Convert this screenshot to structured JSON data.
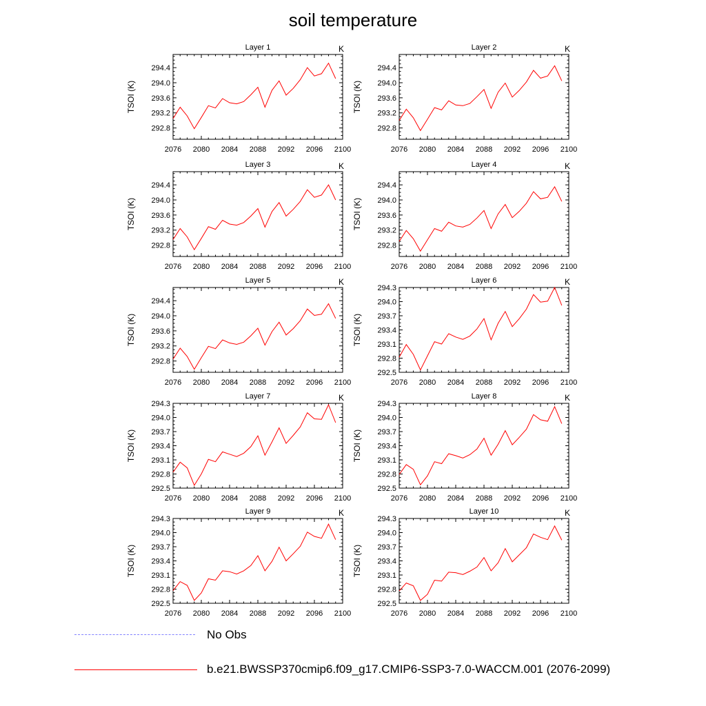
{
  "title": "soil temperature",
  "colors": {
    "model": "#ff0000",
    "obs": "#8080ff"
  },
  "legend": [
    {
      "name": "obs",
      "label": "No Obs",
      "style": "dashed"
    },
    {
      "name": "model",
      "label": "b.e21.BWSSP370cmip6.f09_g17.CMIP6-SSP3-7.0-WACCM.001 (2076-2099)",
      "style": "solid"
    }
  ],
  "chart_data": [
    {
      "type": "line",
      "title": "Layer 1",
      "units": "K",
      "ylabel": "TSOI  (K)",
      "xlim": [
        2076,
        2100
      ],
      "ylim": [
        292.5,
        294.75
      ],
      "xticks": [
        2076,
        2080,
        2084,
        2088,
        2092,
        2096,
        2100
      ],
      "yticks": [
        "292.8",
        "293.2",
        "293.6",
        "294.0",
        "294.4"
      ],
      "series": [
        {
          "name": "model",
          "x": [
            2076,
            2077,
            2078,
            2079,
            2080,
            2081,
            2082,
            2083,
            2084,
            2085,
            2086,
            2087,
            2088,
            2089,
            2090,
            2091,
            2092,
            2093,
            2094,
            2095,
            2096,
            2097,
            2098,
            2099
          ],
          "values": [
            293.05,
            293.35,
            293.12,
            292.78,
            293.08,
            293.39,
            293.33,
            293.58,
            293.47,
            293.44,
            293.5,
            293.68,
            293.88,
            293.35,
            293.8,
            294.05,
            293.67,
            293.85,
            294.08,
            294.4,
            294.18,
            294.24,
            294.52,
            294.11
          ]
        }
      ]
    },
    {
      "type": "line",
      "title": "Layer 2",
      "units": "K",
      "ylabel": "TSOI  (K)",
      "xlim": [
        2076,
        2100
      ],
      "ylim": [
        292.5,
        294.75
      ],
      "xticks": [
        2076,
        2080,
        2084,
        2088,
        2092,
        2096,
        2100
      ],
      "yticks": [
        "292.8",
        "293.2",
        "293.6",
        "294.0",
        "294.4"
      ],
      "series": [
        {
          "name": "model",
          "x": [
            2076,
            2077,
            2078,
            2079,
            2080,
            2081,
            2082,
            2083,
            2084,
            2085,
            2086,
            2087,
            2088,
            2089,
            2090,
            2091,
            2092,
            2093,
            2094,
            2095,
            2096,
            2097,
            2098,
            2099
          ],
          "values": [
            293.0,
            293.3,
            293.07,
            292.73,
            293.03,
            293.34,
            293.28,
            293.52,
            293.41,
            293.39,
            293.45,
            293.63,
            293.82,
            293.32,
            293.75,
            293.99,
            293.62,
            293.8,
            294.02,
            294.33,
            294.12,
            294.18,
            294.45,
            294.05
          ]
        }
      ]
    },
    {
      "type": "line",
      "title": "Layer 3",
      "units": "K",
      "ylabel": "TSOI  (K)",
      "xlim": [
        2076,
        2100
      ],
      "ylim": [
        292.5,
        294.75
      ],
      "xticks": [
        2076,
        2080,
        2084,
        2088,
        2092,
        2096,
        2100
      ],
      "yticks": [
        "292.8",
        "293.2",
        "293.6",
        "294.0",
        "294.4"
      ],
      "series": [
        {
          "name": "model",
          "x": [
            2076,
            2077,
            2078,
            2079,
            2080,
            2081,
            2082,
            2083,
            2084,
            2085,
            2086,
            2087,
            2088,
            2089,
            2090,
            2091,
            2092,
            2093,
            2094,
            2095,
            2096,
            2097,
            2098,
            2099
          ],
          "values": [
            292.95,
            293.24,
            293.02,
            292.68,
            292.98,
            293.29,
            293.22,
            293.46,
            293.36,
            293.33,
            293.4,
            293.57,
            293.77,
            293.28,
            293.69,
            293.93,
            293.57,
            293.75,
            293.96,
            294.27,
            294.07,
            294.13,
            294.4,
            294.0
          ]
        }
      ]
    },
    {
      "type": "line",
      "title": "Layer 4",
      "units": "K",
      "ylabel": "TSOI  (K)",
      "xlim": [
        2076,
        2100
      ],
      "ylim": [
        292.5,
        294.75
      ],
      "xticks": [
        2076,
        2080,
        2084,
        2088,
        2092,
        2096,
        2100
      ],
      "yticks": [
        "292.8",
        "293.2",
        "293.6",
        "294.0",
        "294.4"
      ],
      "series": [
        {
          "name": "model",
          "x": [
            2076,
            2077,
            2078,
            2079,
            2080,
            2081,
            2082,
            2083,
            2084,
            2085,
            2086,
            2087,
            2088,
            2089,
            2090,
            2091,
            2092,
            2093,
            2094,
            2095,
            2096,
            2097,
            2098,
            2099
          ],
          "values": [
            292.9,
            293.19,
            292.97,
            292.64,
            292.94,
            293.24,
            293.17,
            293.41,
            293.31,
            293.28,
            293.35,
            293.52,
            293.72,
            293.24,
            293.63,
            293.88,
            293.53,
            293.7,
            293.91,
            294.22,
            294.03,
            294.07,
            294.35,
            293.96
          ]
        }
      ]
    },
    {
      "type": "line",
      "title": "Layer 5",
      "units": "K",
      "ylabel": "TSOI  (K)",
      "xlim": [
        2076,
        2100
      ],
      "ylim": [
        292.5,
        294.75
      ],
      "xticks": [
        2076,
        2080,
        2084,
        2088,
        2092,
        2096,
        2100
      ],
      "yticks": [
        "292.8",
        "293.2",
        "293.6",
        "294.0",
        "294.4"
      ],
      "series": [
        {
          "name": "model",
          "x": [
            2076,
            2077,
            2078,
            2079,
            2080,
            2081,
            2082,
            2083,
            2084,
            2085,
            2086,
            2087,
            2088,
            2089,
            2090,
            2091,
            2092,
            2093,
            2094,
            2095,
            2096,
            2097,
            2098,
            2099
          ],
          "values": [
            292.85,
            293.14,
            292.92,
            292.58,
            292.89,
            293.19,
            293.13,
            293.36,
            293.28,
            293.24,
            293.3,
            293.47,
            293.67,
            293.22,
            293.58,
            293.83,
            293.49,
            293.66,
            293.87,
            294.18,
            294.01,
            294.04,
            294.32,
            293.93
          ]
        }
      ]
    },
    {
      "type": "line",
      "title": "Layer 6",
      "units": "K",
      "ylabel": "TSOI  (K)",
      "xlim": [
        2076,
        2100
      ],
      "ylim": [
        292.5,
        294.3
      ],
      "xticks": [
        2076,
        2080,
        2084,
        2088,
        2092,
        2096,
        2100
      ],
      "yticks": [
        "292.5",
        "292.8",
        "293.1",
        "293.4",
        "293.7",
        "294.0",
        "294.3"
      ],
      "series": [
        {
          "name": "model",
          "x": [
            2076,
            2077,
            2078,
            2079,
            2080,
            2081,
            2082,
            2083,
            2084,
            2085,
            2086,
            2087,
            2088,
            2089,
            2090,
            2091,
            2092,
            2093,
            2094,
            2095,
            2096,
            2097,
            2098,
            2099
          ],
          "values": [
            292.82,
            293.09,
            292.88,
            292.55,
            292.85,
            293.15,
            293.1,
            293.32,
            293.25,
            293.2,
            293.27,
            293.42,
            293.64,
            293.19,
            293.54,
            293.79,
            293.47,
            293.64,
            293.84,
            294.15,
            293.99,
            294.01,
            294.3,
            293.92
          ]
        }
      ]
    },
    {
      "type": "line",
      "title": "Layer 7",
      "units": "K",
      "ylabel": "TSOI  (K)",
      "xlim": [
        2076,
        2100
      ],
      "ylim": [
        292.5,
        294.3
      ],
      "xticks": [
        2076,
        2080,
        2084,
        2088,
        2092,
        2096,
        2100
      ],
      "yticks": [
        "292.5",
        "292.8",
        "293.1",
        "293.4",
        "293.7",
        "294.0",
        "294.3"
      ],
      "series": [
        {
          "name": "model",
          "x": [
            2076,
            2077,
            2078,
            2079,
            2080,
            2081,
            2082,
            2083,
            2084,
            2085,
            2086,
            2087,
            2088,
            2089,
            2090,
            2091,
            2092,
            2093,
            2094,
            2095,
            2096,
            2097,
            2098,
            2099
          ],
          "values": [
            292.84,
            293.05,
            292.93,
            292.56,
            292.8,
            293.11,
            293.06,
            293.27,
            293.22,
            293.17,
            293.24,
            293.38,
            293.61,
            293.2,
            293.48,
            293.78,
            293.45,
            293.62,
            293.8,
            294.1,
            293.97,
            293.96,
            294.27,
            293.89
          ]
        }
      ]
    },
    {
      "type": "line",
      "title": "Layer 8",
      "units": "K",
      "ylabel": "TSOI  (K)",
      "xlim": [
        2076,
        2100
      ],
      "ylim": [
        292.5,
        294.3
      ],
      "xticks": [
        2076,
        2080,
        2084,
        2088,
        2092,
        2096,
        2100
      ],
      "yticks": [
        "292.5",
        "292.8",
        "293.1",
        "293.4",
        "293.7",
        "294.0",
        "294.3"
      ],
      "series": [
        {
          "name": "model",
          "x": [
            2076,
            2077,
            2078,
            2079,
            2080,
            2081,
            2082,
            2083,
            2084,
            2085,
            2086,
            2087,
            2088,
            2089,
            2090,
            2091,
            2092,
            2093,
            2094,
            2095,
            2096,
            2097,
            2098,
            2099
          ],
          "values": [
            292.79,
            293.0,
            292.9,
            292.57,
            292.76,
            293.06,
            293.02,
            293.23,
            293.19,
            293.14,
            293.21,
            293.33,
            293.56,
            293.2,
            293.43,
            293.72,
            293.42,
            293.58,
            293.75,
            294.06,
            293.95,
            293.92,
            294.23,
            293.87
          ]
        }
      ]
    },
    {
      "type": "line",
      "title": "Layer 9",
      "units": "K",
      "ylabel": "TSOI  (K)",
      "xlim": [
        2076,
        2100
      ],
      "ylim": [
        292.5,
        294.3
      ],
      "xticks": [
        2076,
        2080,
        2084,
        2088,
        2092,
        2096,
        2100
      ],
      "yticks": [
        "292.5",
        "292.8",
        "293.1",
        "293.4",
        "293.7",
        "294.0",
        "294.3"
      ],
      "series": [
        {
          "name": "model",
          "x": [
            2076,
            2077,
            2078,
            2079,
            2080,
            2081,
            2082,
            2083,
            2084,
            2085,
            2086,
            2087,
            2088,
            2089,
            2090,
            2091,
            2092,
            2093,
            2094,
            2095,
            2096,
            2097,
            2098,
            2099
          ],
          "values": [
            292.77,
            292.96,
            292.88,
            292.56,
            292.72,
            293.02,
            292.99,
            293.19,
            293.17,
            293.12,
            293.19,
            293.3,
            293.51,
            293.19,
            293.39,
            293.69,
            293.4,
            293.55,
            293.71,
            294.01,
            293.92,
            293.88,
            294.18,
            293.85
          ]
        }
      ]
    },
    {
      "type": "line",
      "title": "Layer 10",
      "units": "K",
      "ylabel": "TSOI  (K)",
      "xlim": [
        2076,
        2100
      ],
      "ylim": [
        292.5,
        294.3
      ],
      "xticks": [
        2076,
        2080,
        2084,
        2088,
        2092,
        2096,
        2100
      ],
      "yticks": [
        "292.5",
        "292.8",
        "293.1",
        "293.4",
        "293.7",
        "294.0",
        "294.3"
      ],
      "series": [
        {
          "name": "model",
          "x": [
            2076,
            2077,
            2078,
            2079,
            2080,
            2081,
            2082,
            2083,
            2084,
            2085,
            2086,
            2087,
            2088,
            2089,
            2090,
            2091,
            2092,
            2093,
            2094,
            2095,
            2096,
            2097,
            2098,
            2099
          ],
          "values": [
            292.76,
            292.93,
            292.87,
            292.56,
            292.69,
            292.99,
            292.97,
            293.16,
            293.15,
            293.11,
            293.18,
            293.27,
            293.47,
            293.19,
            293.36,
            293.66,
            293.38,
            293.53,
            293.68,
            293.97,
            293.9,
            293.85,
            294.14,
            293.84
          ]
        }
      ]
    }
  ]
}
